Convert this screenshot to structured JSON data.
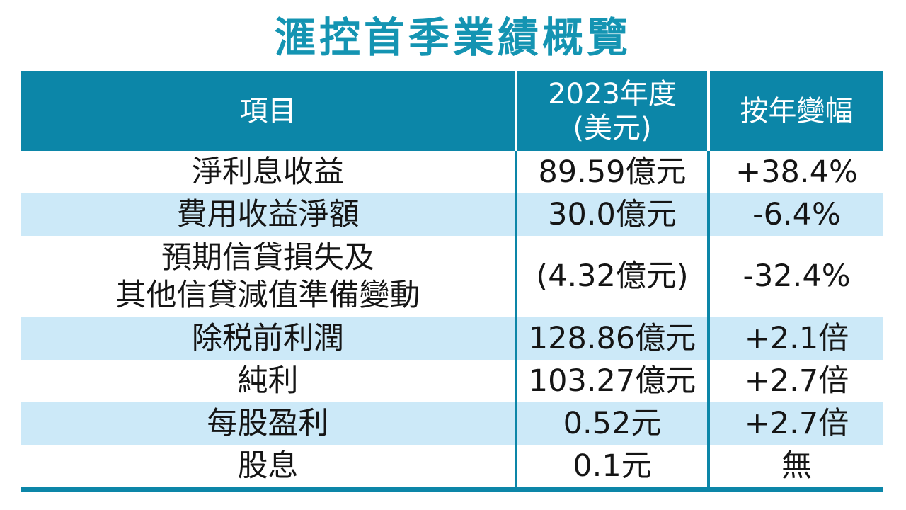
{
  "title": "滙控首季業績概覽",
  "colors": {
    "accent_teal": "#0c86a8",
    "title_teal": "#1494b2",
    "alt_row_blue": "#cce9f8",
    "header_text": "#ffffff",
    "body_text": "#151515"
  },
  "chart_data": {
    "type": "table",
    "title": "滙控首季業績概覽",
    "columns": [
      "項目",
      "2023年度\n(美元)",
      "按年變幅"
    ],
    "rows": [
      {
        "item": "淨利息收益",
        "value": "89.59億元",
        "change": "+38.4%"
      },
      {
        "item": "費用收益淨額",
        "value": "30.0億元",
        "change": "-6.4%"
      },
      {
        "item": "預期信貸損失及\n其他信貸減值準備變動",
        "value": "(4.32億元)",
        "change": "-32.4%"
      },
      {
        "item": "除税前利潤",
        "value": "128.86億元",
        "change": "+2.1倍"
      },
      {
        "item": "純利",
        "value": "103.27億元",
        "change": "+2.7倍"
      },
      {
        "item": "每股盈利",
        "value": "0.52元",
        "change": "+2.7倍"
      },
      {
        "item": "股息",
        "value": "0.1元",
        "change": "無"
      }
    ]
  }
}
